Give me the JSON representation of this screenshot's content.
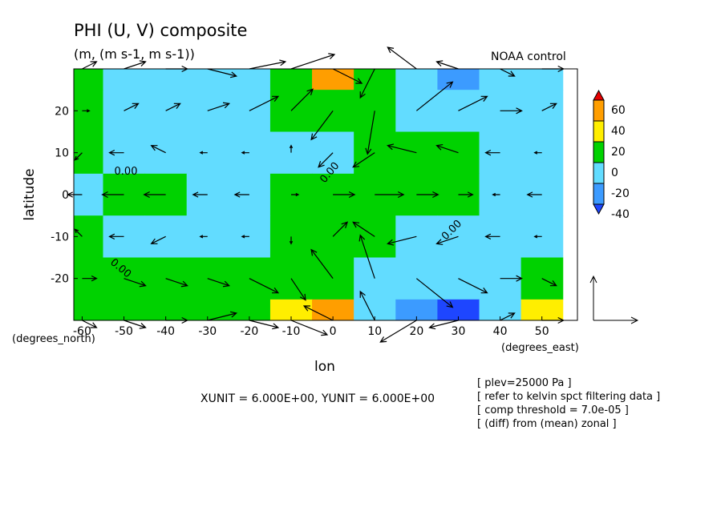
{
  "chart_data": {
    "type": "contour-vector",
    "title": "PHI (U, V) composite",
    "subtitle": "(m, (m s-1, m s-1))",
    "experiment": "NOAA control",
    "x_label": "lon",
    "y_label": "latitude",
    "y_units": "(degrees_north)",
    "x_units": "(degrees_east)",
    "vector_units": "XUNIT = 6.000E+00, YUNIT = 6.000E+00",
    "notes": [
      "[ plev=25000 Pa ]",
      "[ refer to kelvin spct filtering data ]",
      "[ comp threshold = 7.0e-05 ]",
      "[ (diff) from (mean) zonal ]"
    ],
    "contour_labels": [
      "0.00",
      "0.00",
      "0.00",
      "0.00"
    ],
    "xlim": [
      -62,
      58.5
    ],
    "ylim": [
      -30,
      30
    ],
    "xticks": [
      -60,
      -50,
      -40,
      -30,
      -20,
      -10,
      0,
      10,
      20,
      30,
      40,
      50
    ],
    "yticks": [
      -20,
      -10,
      0,
      10,
      20
    ],
    "x": [
      -60,
      -50,
      -40,
      -30,
      -20,
      -10,
      0,
      10,
      20,
      30,
      40,
      50
    ],
    "y": [
      30,
      20,
      10,
      0,
      -10,
      -20,
      -30
    ],
    "values": [
      [
        5,
        -10,
        -10,
        -10,
        -5,
        15,
        45,
        5,
        -10,
        -30,
        -15,
        -10
      ],
      [
        5,
        -5,
        -10,
        -10,
        -5,
        5,
        15,
        5,
        -5,
        -10,
        -5,
        -5
      ],
      [
        5,
        -5,
        -10,
        -10,
        -10,
        -10,
        -5,
        5,
        5,
        5,
        -5,
        -5
      ],
      [
        -5,
        5,
        5,
        -10,
        -10,
        5,
        10,
        10,
        10,
        5,
        -5,
        -5
      ],
      [
        5,
        -5,
        -10,
        -10,
        -10,
        5,
        10,
        5,
        -5,
        -10,
        -10,
        -5
      ],
      [
        5,
        5,
        5,
        5,
        5,
        10,
        15,
        -5,
        -15,
        -10,
        -5,
        5
      ],
      [
        5,
        5,
        5,
        5,
        10,
        30,
        45,
        -10,
        -30,
        -45,
        -10,
        25
      ]
    ],
    "u": [
      [
        2,
        3,
        3,
        4,
        5,
        6,
        4,
        -2,
        -4,
        -3,
        2,
        3
      ],
      [
        1,
        2,
        2,
        3,
        4,
        3,
        -3,
        -1,
        5,
        4,
        3,
        2
      ],
      [
        -1,
        -2,
        -2,
        -1,
        -1,
        0,
        -2,
        -3,
        -4,
        -3,
        -2,
        -1
      ],
      [
        -2,
        -3,
        -3,
        -2,
        -2,
        1,
        3,
        4,
        3,
        2,
        -1,
        -2
      ],
      [
        -1,
        -2,
        -2,
        -1,
        -1,
        0,
        2,
        -3,
        -4,
        -3,
        -2,
        -1
      ],
      [
        2,
        3,
        3,
        3,
        4,
        2,
        -3,
        -2,
        5,
        4,
        3,
        2
      ],
      [
        2,
        3,
        3,
        4,
        4,
        5,
        -4,
        -2,
        -5,
        -4,
        2,
        3
      ]
    ],
    "v": [
      [
        1,
        1,
        0,
        -1,
        1,
        2,
        -2,
        -4,
        3,
        1,
        -1,
        0
      ],
      [
        0,
        1,
        1,
        1,
        2,
        3,
        -4,
        -6,
        4,
        2,
        0,
        1
      ],
      [
        -1,
        0,
        1,
        0,
        0,
        1,
        -2,
        -2,
        1,
        1,
        0,
        0
      ],
      [
        0,
        0,
        0,
        0,
        0,
        0,
        0,
        0,
        0,
        0,
        0,
        0
      ],
      [
        1,
        0,
        -1,
        0,
        0,
        -1,
        2,
        2,
        -1,
        -1,
        0,
        0
      ],
      [
        0,
        -1,
        -1,
        -1,
        -2,
        -3,
        4,
        6,
        -4,
        -2,
        0,
        -1
      ],
      [
        -1,
        -1,
        0,
        1,
        -1,
        -2,
        2,
        4,
        -3,
        -1,
        1,
        0
      ]
    ],
    "levels": [
      -40,
      -20,
      0,
      20,
      40,
      60
    ],
    "colors": [
      "#1e46ff",
      "#3c9bff",
      "#62dcff",
      "#00d200",
      "#ffee00",
      "#ff9e00",
      "#e60000"
    ]
  }
}
